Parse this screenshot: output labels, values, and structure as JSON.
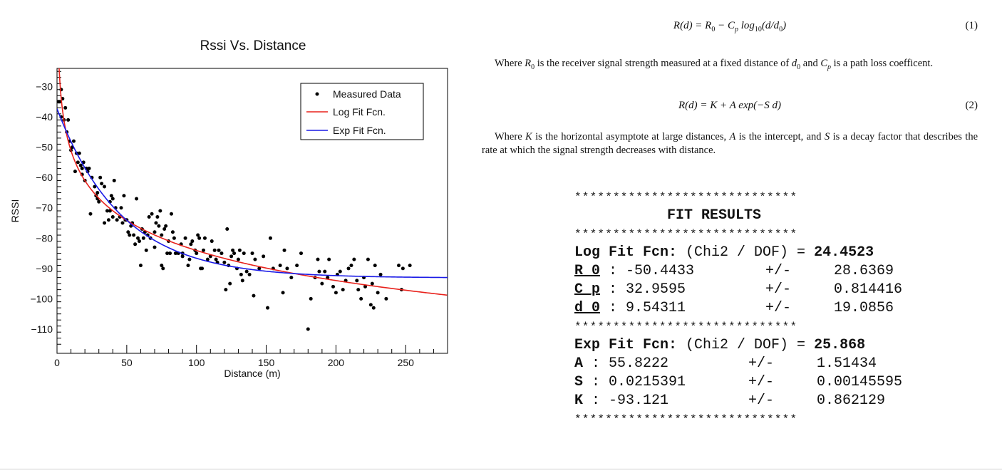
{
  "chart_data": {
    "type": "scatter",
    "title": "Rssi Vs. Distance",
    "xlabel": "Distance (m)",
    "ylabel": "RSSI",
    "xlim": [
      0,
      280
    ],
    "ylim": [
      -118,
      -24
    ],
    "xticks": [
      0,
      50,
      100,
      150,
      200,
      250
    ],
    "yticks": [
      -30,
      -40,
      -50,
      -60,
      -70,
      -80,
      -90,
      -100,
      -110
    ],
    "xtick_labels": [
      "0",
      "50",
      "100",
      "150",
      "200",
      "250"
    ],
    "ytick_labels": [
      "−30",
      "−40",
      "−50",
      "−60",
      "−70",
      "−80",
      "−90",
      "−100",
      "−110"
    ],
    "legend": [
      "Measured Data",
      "Log Fit Fcn.",
      "Exp Fit Fcn."
    ],
    "legend_position": "top-right",
    "series": [
      {
        "name": "Measured Data",
        "color": "#000000",
        "points": [
          [
            1,
            -35
          ],
          [
            2,
            -35
          ],
          [
            3,
            -31
          ],
          [
            3,
            -40
          ],
          [
            4,
            -34
          ],
          [
            5,
            -41
          ],
          [
            6,
            -37
          ],
          [
            7,
            -45
          ],
          [
            8,
            -41
          ],
          [
            9,
            -48
          ],
          [
            10,
            -51
          ],
          [
            11,
            -50
          ],
          [
            12,
            -48
          ],
          [
            13,
            -58
          ],
          [
            14,
            -52
          ],
          [
            15,
            -55
          ],
          [
            16,
            -52
          ],
          [
            17,
            -56
          ],
          [
            18,
            -59
          ],
          [
            18,
            -57
          ],
          [
            19,
            -55
          ],
          [
            20,
            -61
          ],
          [
            21,
            -57
          ],
          [
            22,
            -58
          ],
          [
            23,
            -57
          ],
          [
            24,
            -72
          ],
          [
            25,
            -60
          ],
          [
            27,
            -63
          ],
          [
            28,
            -66
          ],
          [
            29,
            -67
          ],
          [
            29,
            -65
          ],
          [
            30,
            -68
          ],
          [
            31,
            -60
          ],
          [
            32,
            -62
          ],
          [
            34,
            -63
          ],
          [
            34,
            -75
          ],
          [
            36,
            -71
          ],
          [
            37,
            -74
          ],
          [
            38,
            -68
          ],
          [
            38,
            -71
          ],
          [
            39,
            -66
          ],
          [
            40,
            -67
          ],
          [
            40,
            -73
          ],
          [
            41,
            -61
          ],
          [
            42,
            -70
          ],
          [
            43,
            -74
          ],
          [
            45,
            -73
          ],
          [
            46,
            -70
          ],
          [
            47,
            -75
          ],
          [
            48,
            -66
          ],
          [
            49,
            -74
          ],
          [
            50,
            -74
          ],
          [
            51,
            -78
          ],
          [
            52,
            -79
          ],
          [
            53,
            -76
          ],
          [
            54,
            -75
          ],
          [
            55,
            -79
          ],
          [
            56,
            -82
          ],
          [
            57,
            -67
          ],
          [
            58,
            -80
          ],
          [
            59,
            -81
          ],
          [
            60,
            -89
          ],
          [
            61,
            -77
          ],
          [
            62,
            -80
          ],
          [
            63,
            -78
          ],
          [
            64,
            -84
          ],
          [
            65,
            -79
          ],
          [
            66,
            -73
          ],
          [
            67,
            -80
          ],
          [
            68,
            -72
          ],
          [
            70,
            -78
          ],
          [
            70,
            -83
          ],
          [
            71,
            -75
          ],
          [
            72,
            -73
          ],
          [
            73,
            -76
          ],
          [
            74,
            -71
          ],
          [
            75,
            -79
          ],
          [
            75,
            -89
          ],
          [
            76,
            -90
          ],
          [
            77,
            -77
          ],
          [
            78,
            -76
          ],
          [
            79,
            -85
          ],
          [
            80,
            -81
          ],
          [
            81,
            -85
          ],
          [
            82,
            -72
          ],
          [
            83,
            -78
          ],
          [
            84,
            -80
          ],
          [
            85,
            -85
          ],
          [
            87,
            -85
          ],
          [
            89,
            -82
          ],
          [
            90,
            -86
          ],
          [
            90,
            -85
          ],
          [
            92,
            -80
          ],
          [
            94,
            -89
          ],
          [
            95,
            -87
          ],
          [
            96,
            -82
          ],
          [
            97,
            -81
          ],
          [
            99,
            -84
          ],
          [
            100,
            -85
          ],
          [
            101,
            -79
          ],
          [
            102,
            -80
          ],
          [
            103,
            -90
          ],
          [
            104,
            -90
          ],
          [
            105,
            -84
          ],
          [
            106,
            -80
          ],
          [
            108,
            -87
          ],
          [
            110,
            -86
          ],
          [
            111,
            -81
          ],
          [
            113,
            -84
          ],
          [
            114,
            -87
          ],
          [
            115,
            -88
          ],
          [
            116,
            -84
          ],
          [
            118,
            -85
          ],
          [
            120,
            -88
          ],
          [
            121,
            -97
          ],
          [
            122,
            -77
          ],
          [
            123,
            -89
          ],
          [
            124,
            -95
          ],
          [
            125,
            -86
          ],
          [
            126,
            -84
          ],
          [
            127,
            -85
          ],
          [
            129,
            -90
          ],
          [
            130,
            -87
          ],
          [
            131,
            -84
          ],
          [
            132,
            -92
          ],
          [
            133,
            -94
          ],
          [
            134,
            -85
          ],
          [
            136,
            -91
          ],
          [
            138,
            -92
          ],
          [
            140,
            -85
          ],
          [
            141,
            -99
          ],
          [
            142,
            -87
          ],
          [
            145,
            -90
          ],
          [
            148,
            -86
          ],
          [
            151,
            -103
          ],
          [
            153,
            -80
          ],
          [
            155,
            -90
          ],
          [
            160,
            -89
          ],
          [
            162,
            -98
          ],
          [
            163,
            -84
          ],
          [
            165,
            -90
          ],
          [
            168,
            -93
          ],
          [
            172,
            -89
          ],
          [
            175,
            -85
          ],
          [
            180,
            -110
          ],
          [
            182,
            -100
          ],
          [
            185,
            -93
          ],
          [
            187,
            -87
          ],
          [
            188,
            -91
          ],
          [
            190,
            -95
          ],
          [
            192,
            -91
          ],
          [
            194,
            -93
          ],
          [
            195,
            -87
          ],
          [
            198,
            -96
          ],
          [
            200,
            -98
          ],
          [
            201,
            -92
          ],
          [
            203,
            -91
          ],
          [
            205,
            -97
          ],
          [
            207,
            -94
          ],
          [
            209,
            -90
          ],
          [
            211,
            -89
          ],
          [
            213,
            -87
          ],
          [
            215,
            -94
          ],
          [
            216,
            -97
          ],
          [
            218,
            -100
          ],
          [
            220,
            -93
          ],
          [
            221,
            -96
          ],
          [
            223,
            -87
          ],
          [
            225,
            -102
          ],
          [
            226,
            -95
          ],
          [
            227,
            -103
          ],
          [
            228,
            -89
          ],
          [
            230,
            -98
          ],
          [
            232,
            -92
          ],
          [
            236,
            -100
          ],
          [
            245,
            -89
          ],
          [
            247,
            -97
          ],
          [
            248,
            -90
          ],
          [
            253,
            -89
          ]
        ]
      },
      {
        "name": "Log Fit Fcn.",
        "color": "#e8221c",
        "equation": "R_0 - C_p log10(d/d_0)",
        "params": {
          "R_0": -50.4433,
          "C_p": 32.9595,
          "d_0": 9.54311
        }
      },
      {
        "name": "Exp Fit Fcn.",
        "color": "#1a1ae6",
        "equation": "K + A exp(-S d)",
        "params": {
          "A": 55.8222,
          "S": 0.0215391,
          "K": -93.121
        }
      }
    ]
  },
  "text": {
    "eq1_parts": [
      "R(d) = R",
      "0",
      " − C",
      "p",
      " log",
      "10",
      "(d/d",
      "0",
      ")"
    ],
    "eq1_number": "(1)",
    "para1": [
      "Where ",
      "R",
      "0",
      " is the receiver signal strength measured at a fixed distance of ",
      "d",
      "0",
      " and ",
      "C",
      "p",
      " is a path loss coefficent."
    ],
    "eq2": "R(d) = K + A exp(−S d)",
    "eq2_number": "(2)",
    "para2": [
      "Where ",
      "K",
      " is the horizontal asymptote at large distances, ",
      "A",
      " is the intercept, and ",
      "S",
      " is a decay factor that describes the rate at which the signal strength decreases with distance."
    ]
  },
  "fit_results": {
    "stars": "*****************************",
    "title": "FIT RESULTS",
    "log": {
      "label": "Log Fit Fcn:",
      "chi_label": " (Chi2 / DOF) = ",
      "chi_value": "24.4523",
      "rows": [
        {
          "name": "R_0",
          "value": "-50.4433",
          "pm": "+/-",
          "err": "28.6369"
        },
        {
          "name": "C_p",
          "value": "32.9595",
          "pm": "+/-",
          "err": "0.814416"
        },
        {
          "name": "d_0",
          "value": "9.54311",
          "pm": "+/-",
          "err": "19.0856"
        }
      ]
    },
    "exp": {
      "label": "Exp Fit Fcn:",
      "chi_label": " (Chi2 / DOF) = ",
      "chi_value": "25.868",
      "rows": [
        {
          "name": "A",
          "value": "55.8222",
          "pm": "+/-",
          "err": "1.51434"
        },
        {
          "name": "S",
          "value": "0.0215391",
          "pm": "+/-",
          "err": "0.00145595"
        },
        {
          "name": "K",
          "value": "-93.121",
          "pm": "+/-",
          "err": "0.862129"
        }
      ]
    }
  }
}
